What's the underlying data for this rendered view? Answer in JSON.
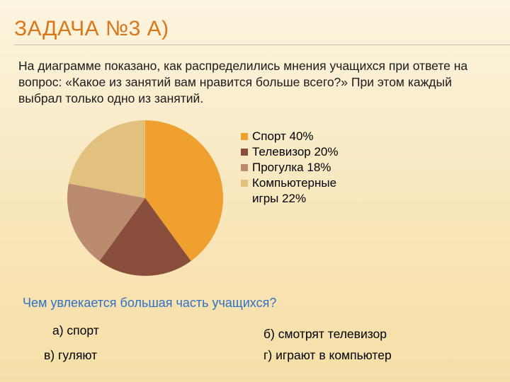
{
  "title": {
    "text": "ЗАДАЧА №3 А)",
    "color": "#d9761a"
  },
  "rule_color": "#c9c2ae",
  "intro": "На диаграмме показано, как распределились мнения учащихся при ответе на вопрос: «Какое из занятий вам нравится больше всего?» При этом каждый выбрал только одно из занятий.",
  "chart": {
    "type": "pie",
    "series": [
      {
        "name": "sport",
        "label": "Спорт 40%",
        "value": 40,
        "color": "#efa02e"
      },
      {
        "name": "tv",
        "label": "Телевизор 20%",
        "value": 20,
        "color": "#8a4f3c"
      },
      {
        "name": "walk",
        "label": "Прогулка 18%",
        "value": 18,
        "color": "#bb8b6f"
      },
      {
        "name": "games",
        "label": "Компьютерные\nигры 22%",
        "value": 22,
        "color": "#e2c17e"
      }
    ],
    "start_angle_deg": -90,
    "background_color": "transparent"
  },
  "question": {
    "text": "Чем увлекается большая часть учащихся?",
    "color": "#2f72c5"
  },
  "answers": {
    "a": "а) спорт",
    "b": "б) смотрят телевизор",
    "v": "в) гуляют",
    "g": "г) играют в компьютер"
  }
}
